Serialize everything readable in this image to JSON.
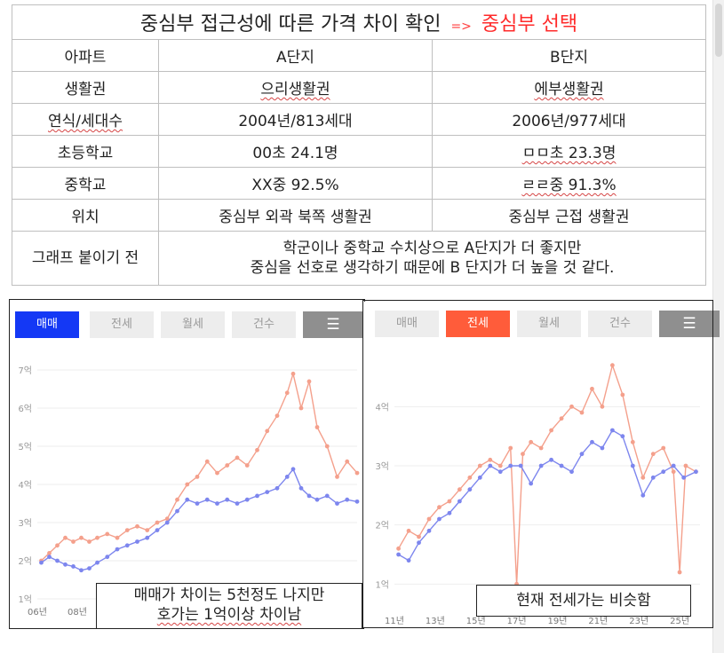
{
  "table": {
    "title_main": "중심부 접근성에 따른 가격 차이 확인",
    "title_arrow": "=>",
    "title_accent": "중심부 선택",
    "headers": [
      "아파트",
      "A단지",
      "B단지"
    ],
    "rows": [
      {
        "label": "생활권",
        "a": "으리생활권",
        "b": "에부생활권"
      },
      {
        "label": "연식/세대수",
        "a": "2004년/813세대",
        "b": "2006년/977세대"
      },
      {
        "label": "초등학교",
        "a": "00초 24.1명",
        "b": "ㅁㅁ초 23.3명"
      },
      {
        "label": "중학교",
        "a": "XX중 92.5%",
        "b": "ㄹㄹ중 91.3%"
      },
      {
        "label": "위치",
        "a": "중심부 외곽 북쪽 생활권",
        "b": "중심부 근접 생활권"
      }
    ],
    "note_label": "그래프 붙이기 전",
    "note_line1": "학군이나 중학교 수치상으로 A단지가 더 좋지만",
    "note_line2": "중심을 선호로 생각하기 때문에 B 단지가  더 높을 것 같다."
  },
  "left_chart": {
    "tabs": [
      "매매",
      "전세",
      "월세",
      "건수"
    ],
    "active_tab": "매매",
    "menu_icon": "list-icon",
    "caption_line1": "매매가 차이는 5천정도 나지만",
    "caption_line2": "호가는 1억이상 차이남"
  },
  "right_chart": {
    "tabs": [
      "매매",
      "전세",
      "월세",
      "건수"
    ],
    "active_tab": "전세",
    "menu_icon": "list-icon",
    "caption": "현재 전세가는 비슷함"
  },
  "colors": {
    "series_a": "#f4a08c",
    "series_b": "#7d86ee",
    "blue_tab": "#1438f5",
    "red_tab": "#ff5c3a"
  },
  "chart_data": [
    {
      "type": "line",
      "yticks": [
        "1억",
        "2억",
        "3억",
        "4억",
        "5억",
        "6억",
        "7억"
      ],
      "xticks": [
        "06년",
        "08년"
      ],
      "ylim": [
        1,
        7
      ],
      "x_range": [
        2006,
        2022
      ],
      "series": [
        {
          "color": "#f4a08c",
          "points": [
            [
              2006.2,
              2.0
            ],
            [
              2006.6,
              2.2
            ],
            [
              2007.0,
              2.4
            ],
            [
              2007.4,
              2.6
            ],
            [
              2007.8,
              2.5
            ],
            [
              2008.2,
              2.6
            ],
            [
              2008.6,
              2.5
            ],
            [
              2009.0,
              2.6
            ],
            [
              2009.5,
              2.7
            ],
            [
              2010.0,
              2.6
            ],
            [
              2010.5,
              2.8
            ],
            [
              2011.0,
              2.9
            ],
            [
              2011.5,
              2.8
            ],
            [
              2012.0,
              3.0
            ],
            [
              2012.5,
              3.1
            ],
            [
              2013.0,
              3.6
            ],
            [
              2013.5,
              4.0
            ],
            [
              2014.0,
              4.2
            ],
            [
              2014.5,
              4.6
            ],
            [
              2015.0,
              4.3
            ],
            [
              2015.5,
              4.5
            ],
            [
              2016.0,
              4.7
            ],
            [
              2016.5,
              4.5
            ],
            [
              2017.0,
              4.9
            ],
            [
              2017.5,
              5.4
            ],
            [
              2018.0,
              5.8
            ],
            [
              2018.5,
              6.4
            ],
            [
              2018.8,
              6.9
            ],
            [
              2019.2,
              6.0
            ],
            [
              2019.6,
              6.7
            ],
            [
              2020.0,
              5.5
            ],
            [
              2020.5,
              5.0
            ],
            [
              2021.0,
              4.2
            ],
            [
              2021.5,
              4.6
            ],
            [
              2022.0,
              4.3
            ]
          ]
        },
        {
          "color": "#7d86ee",
          "points": [
            [
              2006.2,
              1.95
            ],
            [
              2006.6,
              2.1
            ],
            [
              2007.0,
              2.0
            ],
            [
              2007.4,
              1.9
            ],
            [
              2007.8,
              1.85
            ],
            [
              2008.2,
              1.75
            ],
            [
              2008.6,
              1.8
            ],
            [
              2009.0,
              1.95
            ],
            [
              2009.5,
              2.1
            ],
            [
              2010.0,
              2.3
            ],
            [
              2010.5,
              2.4
            ],
            [
              2011.0,
              2.5
            ],
            [
              2011.5,
              2.6
            ],
            [
              2012.0,
              2.8
            ],
            [
              2012.5,
              3.0
            ],
            [
              2013.0,
              3.3
            ],
            [
              2013.5,
              3.6
            ],
            [
              2014.0,
              3.5
            ],
            [
              2014.5,
              3.6
            ],
            [
              2015.0,
              3.5
            ],
            [
              2015.5,
              3.6
            ],
            [
              2016.0,
              3.5
            ],
            [
              2016.5,
              3.6
            ],
            [
              2017.0,
              3.7
            ],
            [
              2017.5,
              3.8
            ],
            [
              2018.0,
              3.9
            ],
            [
              2018.5,
              4.2
            ],
            [
              2018.8,
              4.4
            ],
            [
              2019.2,
              3.9
            ],
            [
              2019.6,
              3.7
            ],
            [
              2020.0,
              3.6
            ],
            [
              2020.5,
              3.7
            ],
            [
              2021.0,
              3.5
            ],
            [
              2021.5,
              3.6
            ],
            [
              2022.0,
              3.55
            ]
          ]
        }
      ]
    },
    {
      "type": "line",
      "yticks": [
        "1억",
        "2억",
        "3억",
        "4억"
      ],
      "xticks": [
        "11년",
        "13년",
        "15년",
        "17년",
        "19년",
        "21년",
        "23년",
        "25년"
      ],
      "ylim": [
        0.6,
        4.8
      ],
      "x_range": [
        2011,
        2026
      ],
      "series": [
        {
          "color": "#f4a08c",
          "points": [
            [
              2011.2,
              1.6
            ],
            [
              2011.7,
              1.9
            ],
            [
              2012.2,
              1.8
            ],
            [
              2012.7,
              2.1
            ],
            [
              2013.2,
              2.3
            ],
            [
              2013.7,
              2.4
            ],
            [
              2014.2,
              2.6
            ],
            [
              2014.7,
              2.8
            ],
            [
              2015.2,
              3.0
            ],
            [
              2015.7,
              3.1
            ],
            [
              2016.2,
              3.0
            ],
            [
              2016.7,
              3.3
            ],
            [
              2017.0,
              1.0
            ],
            [
              2017.3,
              3.2
            ],
            [
              2017.7,
              3.4
            ],
            [
              2018.2,
              3.3
            ],
            [
              2018.7,
              3.6
            ],
            [
              2019.2,
              3.8
            ],
            [
              2019.7,
              4.0
            ],
            [
              2020.2,
              3.9
            ],
            [
              2020.7,
              4.3
            ],
            [
              2021.2,
              4.0
            ],
            [
              2021.7,
              4.7
            ],
            [
              2022.2,
              4.2
            ],
            [
              2022.7,
              3.4
            ],
            [
              2023.2,
              2.8
            ],
            [
              2023.7,
              3.2
            ],
            [
              2024.2,
              3.3
            ],
            [
              2024.7,
              2.9
            ],
            [
              2025.0,
              1.2
            ],
            [
              2025.3,
              3.0
            ],
            [
              2025.8,
              2.9
            ]
          ]
        },
        {
          "color": "#7d86ee",
          "points": [
            [
              2011.2,
              1.5
            ],
            [
              2011.7,
              1.4
            ],
            [
              2012.2,
              1.7
            ],
            [
              2012.7,
              1.9
            ],
            [
              2013.2,
              2.1
            ],
            [
              2013.7,
              2.2
            ],
            [
              2014.2,
              2.4
            ],
            [
              2014.7,
              2.6
            ],
            [
              2015.2,
              2.8
            ],
            [
              2015.7,
              3.0
            ],
            [
              2016.2,
              2.9
            ],
            [
              2016.7,
              3.0
            ],
            [
              2017.2,
              3.0
            ],
            [
              2017.7,
              2.7
            ],
            [
              2018.2,
              3.0
            ],
            [
              2018.7,
              3.1
            ],
            [
              2019.2,
              3.0
            ],
            [
              2019.7,
              2.9
            ],
            [
              2020.2,
              3.2
            ],
            [
              2020.7,
              3.4
            ],
            [
              2021.2,
              3.3
            ],
            [
              2021.7,
              3.6
            ],
            [
              2022.2,
              3.5
            ],
            [
              2022.7,
              3.0
            ],
            [
              2023.2,
              2.5
            ],
            [
              2023.7,
              2.8
            ],
            [
              2024.2,
              2.9
            ],
            [
              2024.7,
              3.0
            ],
            [
              2025.2,
              2.8
            ],
            [
              2025.8,
              2.9
            ]
          ]
        }
      ]
    }
  ]
}
